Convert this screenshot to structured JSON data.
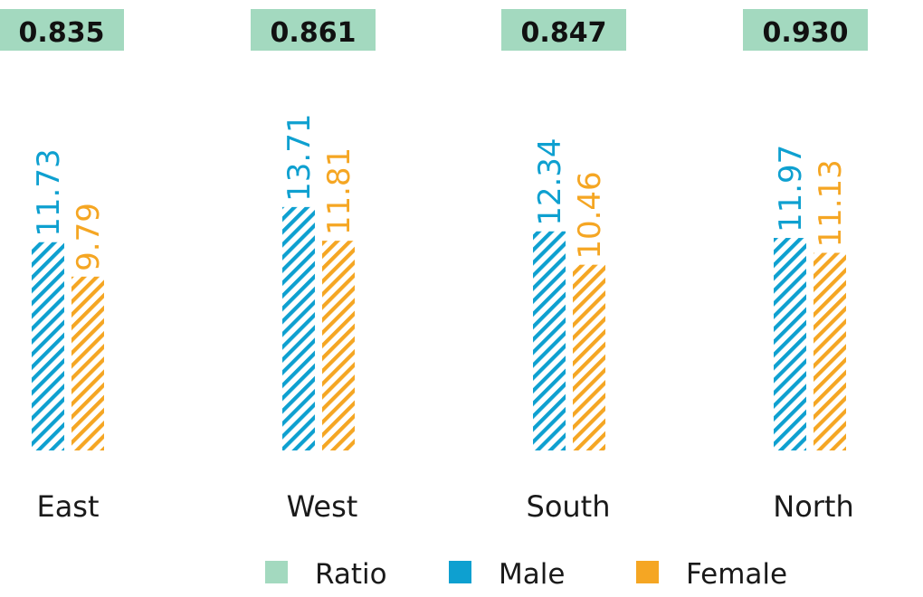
{
  "chart_data": {
    "type": "bar",
    "categories": [
      "East",
      "West",
      "South",
      "North"
    ],
    "series": [
      {
        "name": "Male",
        "values": [
          11.73,
          13.71,
          12.34,
          11.97
        ],
        "value_labels": [
          "11.73",
          "13.71",
          "12.34",
          "11.97"
        ],
        "color": "#0ea0d0",
        "pattern": "diagonal-hatch"
      },
      {
        "name": "Female",
        "values": [
          9.79,
          11.81,
          10.46,
          11.13
        ],
        "value_labels": [
          "9.79",
          "11.81",
          "10.46",
          "11.13"
        ],
        "color": "#f5a623",
        "pattern": "diagonal-hatch"
      }
    ],
    "ratio": {
      "name": "Ratio",
      "values": [
        0.835,
        0.861,
        0.847,
        0.93
      ],
      "labels": [
        "0.835",
        "0.861",
        "0.847",
        "0.930"
      ],
      "color": "#a3d9bf"
    },
    "ylim": [
      0,
      14
    ],
    "grid": false,
    "legend_position": "bottom-center",
    "legend": [
      {
        "label": "Ratio",
        "color": "#a3d9bf"
      },
      {
        "label": "Male",
        "color": "#0ea0d0"
      },
      {
        "label": "Female",
        "color": "#f5a623"
      }
    ],
    "title": "",
    "xlabel": "",
    "ylabel": ""
  }
}
